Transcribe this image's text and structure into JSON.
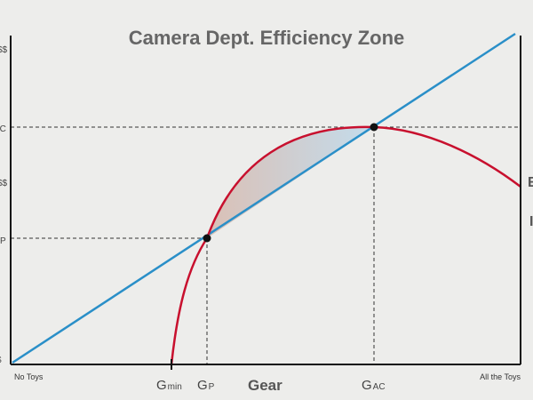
{
  "title": "Camera Dept. Efficiency Zone",
  "x_axis": {
    "left_end_label": "No Toys",
    "right_end_label": "All the Toys",
    "axis_title": "Gear",
    "g_min": {
      "main": "G",
      "sub": "min"
    },
    "g_p": {
      "main": "G",
      "sub": "P"
    },
    "g_ac": {
      "main": "G",
      "sub": "AC"
    }
  },
  "y_axis": {
    "top_label": "$$",
    "ac_label": "AC",
    "mid_label": "$$",
    "p_label": "P",
    "bottom_label": "$"
  },
  "right_fragments": [
    "E",
    "I"
  ],
  "colors": {
    "cost_line": "#2a8fc8",
    "benefit_curve": "#c8102e",
    "axis": "#111111",
    "guides": "#333333",
    "zone_warm": "#d7b8ac",
    "zone_cool": "#bcd9ec"
  }
}
